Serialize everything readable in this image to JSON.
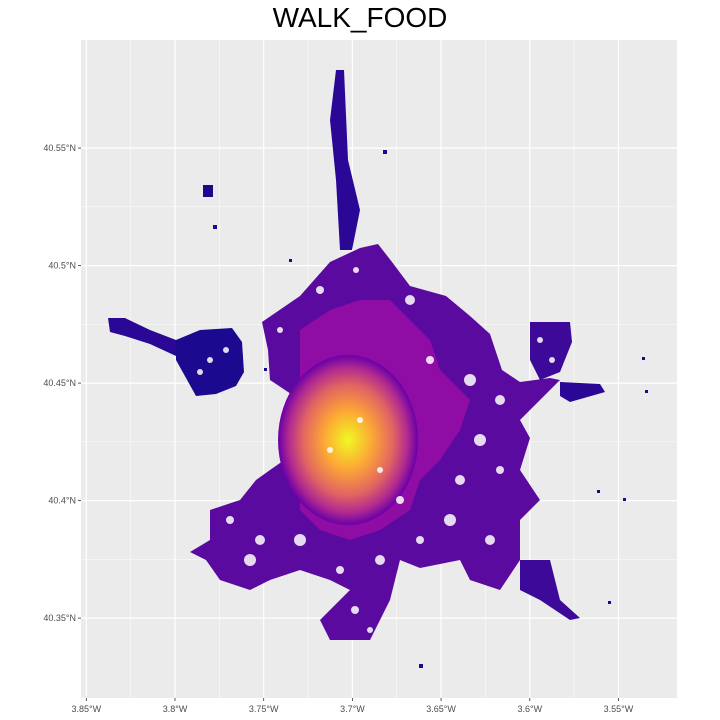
{
  "title": "WALK_FOOD",
  "chart_data": {
    "type": "heatmap",
    "title": "WALK_FOOD",
    "xlabel": "",
    "ylabel": "",
    "x_ticks": [
      "3.85°W",
      "3.8°W",
      "3.75°W",
      "3.7°W",
      "3.65°W",
      "3.6°W",
      "3.55°W"
    ],
    "y_ticks": [
      "40.35°N",
      "40.4°N",
      "40.45°N",
      "40.5°N",
      "40.55°N"
    ],
    "x_tick_values": [
      -3.85,
      -3.8,
      -3.75,
      -3.7,
      -3.65,
      -3.6,
      -3.55
    ],
    "y_tick_values": [
      40.35,
      40.4,
      40.45,
      40.5,
      40.55
    ],
    "xlim": [
      -3.853,
      -3.517
    ],
    "ylim": [
      40.316,
      40.596
    ],
    "grid": true,
    "legend": "none",
    "colormap": [
      "#0d0887",
      "#6a00a8",
      "#b12a90",
      "#e16462",
      "#fca636",
      "#f0f921"
    ],
    "panel_background": "#ebebeb",
    "grid_color": "#ffffff"
  }
}
